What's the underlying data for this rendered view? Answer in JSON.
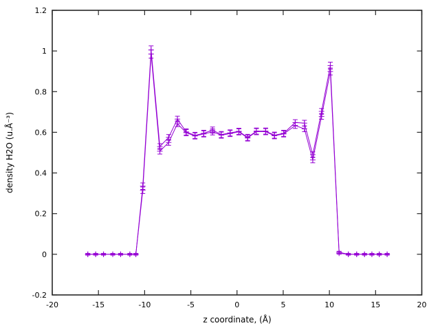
{
  "figure": {
    "background_color": "#ffffff",
    "border_color": "#262626",
    "series_color": "#9400d3",
    "text_color": "#000000",
    "legend": "none",
    "title": ""
  },
  "chart_data": {
    "type": "line",
    "style": "gnuplot points with plus markers and y-error bars, connected by thin lines; two nearly identical overlapping traces",
    "title": "",
    "xlabel": "z coordinate, (Å)",
    "ylabel": "density H2O (u.Å⁻³)",
    "xlim": [
      -20,
      20
    ],
    "ylim": [
      -0.2,
      1.2
    ],
    "xticks": [
      -20,
      -15,
      -10,
      -5,
      0,
      5,
      10,
      15,
      20
    ],
    "yticks": [
      -0.2,
      0,
      0.2,
      0.4,
      0.6,
      0.8,
      1,
      1.2
    ],
    "grid": false,
    "legend_position": "none",
    "series_name": "density H2O",
    "point_format": [
      "x",
      "value_a",
      "value_b",
      "y_error_half_height"
    ],
    "points": [
      [
        -16.15,
        0.0,
        0.0,
        0.004
      ],
      [
        -15.3,
        0.0,
        0.0,
        0.004
      ],
      [
        -14.45,
        0.0,
        0.0,
        0.004
      ],
      [
        -13.45,
        0.0,
        0.0,
        0.004
      ],
      [
        -12.6,
        0.0,
        0.0,
        0.004
      ],
      [
        -11.6,
        0.0,
        0.0,
        0.004
      ],
      [
        -10.95,
        0.0,
        0.0,
        0.004
      ],
      [
        -10.2,
        0.335,
        0.315,
        0.016
      ],
      [
        -9.3,
        1.005,
        0.985,
        0.02
      ],
      [
        -8.35,
        0.53,
        0.507,
        0.014
      ],
      [
        -7.4,
        0.575,
        0.55,
        0.014
      ],
      [
        -6.45,
        0.665,
        0.642,
        0.014
      ],
      [
        -5.5,
        0.602,
        0.598,
        0.015
      ],
      [
        -4.55,
        0.585,
        0.582,
        0.015
      ],
      [
        -3.6,
        0.595,
        0.592,
        0.015
      ],
      [
        -2.65,
        0.611,
        0.602,
        0.015
      ],
      [
        -1.7,
        0.589,
        0.586,
        0.015
      ],
      [
        -0.75,
        0.597,
        0.594,
        0.015
      ],
      [
        0.2,
        0.605,
        0.602,
        0.015
      ],
      [
        1.15,
        0.575,
        0.572,
        0.015
      ],
      [
        2.1,
        0.606,
        0.603,
        0.015
      ],
      [
        3.1,
        0.606,
        0.603,
        0.015
      ],
      [
        4.05,
        0.586,
        0.583,
        0.015
      ],
      [
        5.05,
        0.595,
        0.592,
        0.015
      ],
      [
        6.3,
        0.648,
        0.633,
        0.014
      ],
      [
        7.3,
        0.645,
        0.617,
        0.014
      ],
      [
        8.2,
        0.49,
        0.464,
        0.014
      ],
      [
        9.15,
        0.703,
        0.678,
        0.014
      ],
      [
        10.1,
        0.928,
        0.899,
        0.017
      ],
      [
        11.05,
        0.01,
        0.005,
        0.005
      ],
      [
        12.05,
        0.0,
        0.0,
        0.004
      ],
      [
        12.95,
        0.0,
        0.0,
        0.004
      ],
      [
        13.8,
        0.0,
        0.0,
        0.004
      ],
      [
        14.6,
        0.0,
        0.0,
        0.004
      ],
      [
        15.4,
        0.0,
        0.0,
        0.004
      ],
      [
        16.25,
        0.0,
        0.0,
        0.004
      ]
    ]
  }
}
